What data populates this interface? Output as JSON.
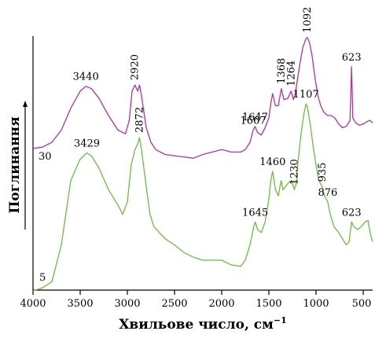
{
  "chart_data": {
    "type": "line",
    "title": "",
    "xlabel": "Хвильове число, см",
    "xlabel_sup": "−1",
    "ylabel": "Поглинання",
    "xlim": [
      4000,
      400
    ],
    "x_reversed": true,
    "x_ticks": [
      4000,
      3500,
      3000,
      2500,
      2000,
      1500,
      1000,
      500
    ],
    "grid": false,
    "series": [
      {
        "name": "30",
        "color": "#b4319e",
        "points": [
          [
            4000,
            0.15
          ],
          [
            3900,
            0.16
          ],
          [
            3800,
            0.2
          ],
          [
            3700,
            0.3
          ],
          [
            3600,
            0.48
          ],
          [
            3500,
            0.62
          ],
          [
            3440,
            0.66
          ],
          [
            3380,
            0.64
          ],
          [
            3300,
            0.56
          ],
          [
            3200,
            0.42
          ],
          [
            3100,
            0.3
          ],
          [
            3020,
            0.27
          ],
          [
            2980,
            0.38
          ],
          [
            2950,
            0.62
          ],
          [
            2920,
            0.67
          ],
          [
            2890,
            0.62
          ],
          [
            2872,
            0.67
          ],
          [
            2850,
            0.58
          ],
          [
            2800,
            0.32
          ],
          [
            2750,
            0.2
          ],
          [
            2700,
            0.14
          ],
          [
            2600,
            0.1
          ],
          [
            2500,
            0.09
          ],
          [
            2400,
            0.08
          ],
          [
            2300,
            0.07
          ],
          [
            2200,
            0.1
          ],
          [
            2100,
            0.12
          ],
          [
            2000,
            0.14
          ],
          [
            1900,
            0.12
          ],
          [
            1800,
            0.12
          ],
          [
            1750,
            0.14
          ],
          [
            1700,
            0.2
          ],
          [
            1667,
            0.3
          ],
          [
            1647,
            0.33
          ],
          [
            1620,
            0.28
          ],
          [
            1580,
            0.26
          ],
          [
            1540,
            0.32
          ],
          [
            1500,
            0.4
          ],
          [
            1480,
            0.52
          ],
          [
            1460,
            0.6
          ],
          [
            1430,
            0.5
          ],
          [
            1400,
            0.5
          ],
          [
            1368,
            0.64
          ],
          [
            1340,
            0.55
          ],
          [
            1300,
            0.56
          ],
          [
            1264,
            0.62
          ],
          [
            1240,
            0.55
          ],
          [
            1220,
            0.6
          ],
          [
            1200,
            0.7
          ],
          [
            1170,
            0.85
          ],
          [
            1140,
            0.98
          ],
          [
            1107,
            1.05
          ],
          [
            1092,
            1.06
          ],
          [
            1070,
            1.02
          ],
          [
            1040,
            0.9
          ],
          [
            1010,
            0.72
          ],
          [
            980,
            0.58
          ],
          [
            950,
            0.5
          ],
          [
            920,
            0.45
          ],
          [
            880,
            0.42
          ],
          [
            840,
            0.42
          ],
          [
            800,
            0.4
          ],
          [
            760,
            0.35
          ],
          [
            720,
            0.32
          ],
          [
            680,
            0.33
          ],
          [
            640,
            0.38
          ],
          [
            623,
            0.82
          ],
          [
            610,
            0.4
          ],
          [
            580,
            0.36
          ],
          [
            540,
            0.34
          ],
          [
            500,
            0.35
          ],
          [
            460,
            0.37
          ],
          [
            430,
            0.38
          ],
          [
            400,
            0.36
          ]
        ]
      },
      {
        "name": "5",
        "color": "#6abf3e",
        "points": [
          [
            4000,
            0.0
          ],
          [
            3900,
            0.02
          ],
          [
            3800,
            0.06
          ],
          [
            3700,
            0.3
          ],
          [
            3600,
            0.72
          ],
          [
            3500,
            0.86
          ],
          [
            3429,
            0.9
          ],
          [
            3380,
            0.88
          ],
          [
            3300,
            0.8
          ],
          [
            3200,
            0.66
          ],
          [
            3100,
            0.56
          ],
          [
            3050,
            0.5
          ],
          [
            3000,
            0.58
          ],
          [
            2960,
            0.82
          ],
          [
            2920,
            0.92
          ],
          [
            2890,
            0.96
          ],
          [
            2872,
            1.0
          ],
          [
            2850,
            0.92
          ],
          [
            2800,
            0.68
          ],
          [
            2760,
            0.5
          ],
          [
            2720,
            0.42
          ],
          [
            2600,
            0.34
          ],
          [
            2500,
            0.3
          ],
          [
            2400,
            0.25
          ],
          [
            2300,
            0.22
          ],
          [
            2200,
            0.2
          ],
          [
            2100,
            0.2
          ],
          [
            2000,
            0.2
          ],
          [
            1900,
            0.17
          ],
          [
            1800,
            0.16
          ],
          [
            1750,
            0.2
          ],
          [
            1700,
            0.3
          ],
          [
            1660,
            0.42
          ],
          [
            1645,
            0.45
          ],
          [
            1620,
            0.4
          ],
          [
            1580,
            0.38
          ],
          [
            1540,
            0.45
          ],
          [
            1500,
            0.6
          ],
          [
            1480,
            0.72
          ],
          [
            1460,
            0.78
          ],
          [
            1430,
            0.66
          ],
          [
            1400,
            0.62
          ],
          [
            1370,
            0.72
          ],
          [
            1350,
            0.66
          ],
          [
            1300,
            0.7
          ],
          [
            1260,
            0.72
          ],
          [
            1230,
            0.66
          ],
          [
            1210,
            0.7
          ],
          [
            1190,
            0.85
          ],
          [
            1160,
            1.02
          ],
          [
            1130,
            1.15
          ],
          [
            1107,
            1.22
          ],
          [
            1092,
            1.2
          ],
          [
            1060,
            1.08
          ],
          [
            1030,
            0.94
          ],
          [
            1000,
            0.82
          ],
          [
            970,
            0.72
          ],
          [
            935,
            0.68
          ],
          [
            910,
            0.62
          ],
          [
            876,
            0.58
          ],
          [
            850,
            0.5
          ],
          [
            810,
            0.42
          ],
          [
            760,
            0.38
          ],
          [
            720,
            0.34
          ],
          [
            680,
            0.3
          ],
          [
            650,
            0.32
          ],
          [
            623,
            0.45
          ],
          [
            600,
            0.42
          ],
          [
            560,
            0.4
          ],
          [
            520,
            0.42
          ],
          [
            480,
            0.45
          ],
          [
            450,
            0.46
          ],
          [
            420,
            0.36
          ],
          [
            400,
            0.32
          ]
        ]
      }
    ],
    "peak_labels": [
      {
        "text": "3440",
        "x": 3440,
        "series": "30"
      },
      {
        "text": "2920",
        "x": 2920,
        "series": "30"
      },
      {
        "text": "1667",
        "x": 1667,
        "series": "30"
      },
      {
        "text": "1647",
        "x": 1647,
        "series": "30"
      },
      {
        "text": "1368",
        "x": 1368,
        "series": "30"
      },
      {
        "text": "1264",
        "x": 1264,
        "series": "30"
      },
      {
        "text": "1092",
        "x": 1092,
        "series": "30"
      },
      {
        "text": "623",
        "x": 623,
        "series": "30"
      },
      {
        "text": "3429",
        "x": 3429,
        "series": "5"
      },
      {
        "text": "2872",
        "x": 2872,
        "series": "5"
      },
      {
        "text": "1460",
        "x": 1460,
        "series": "5"
      },
      {
        "text": "1230",
        "x": 1230,
        "series": "5"
      },
      {
        "text": "1107",
        "x": 1107,
        "series": "5"
      },
      {
        "text": "1645",
        "x": 1645,
        "series": "5"
      },
      {
        "text": "935",
        "x": 935,
        "series": "5"
      },
      {
        "text": "876",
        "x": 876,
        "series": "5"
      },
      {
        "text": "623",
        "x": 623,
        "series": "5"
      }
    ]
  }
}
